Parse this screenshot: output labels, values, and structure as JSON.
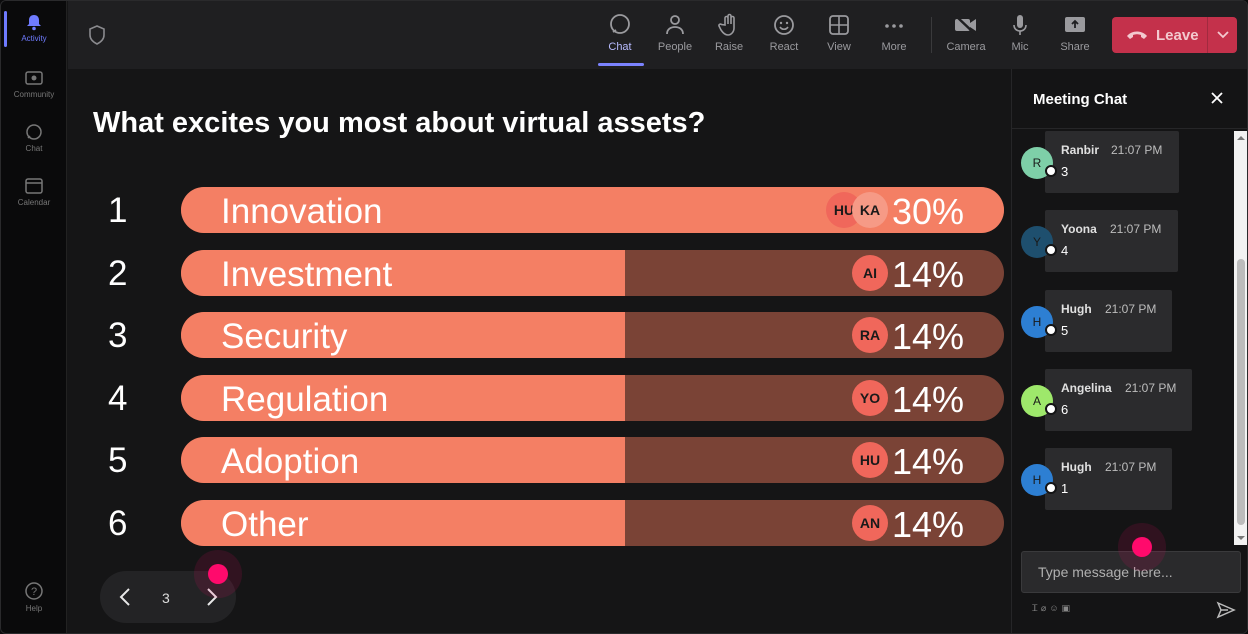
{
  "rail": {
    "items": [
      {
        "label": "Activity",
        "icon": "bell-icon"
      },
      {
        "label": "Community",
        "icon": "community-icon"
      },
      {
        "label": "Chat",
        "icon": "chat-icon"
      },
      {
        "label": "Calendar",
        "icon": "calendar-icon"
      },
      {
        "label": "Help",
        "icon": "help-icon"
      }
    ]
  },
  "toolbar": {
    "buttons": [
      {
        "label": "Chat",
        "icon": "chat-icon"
      },
      {
        "label": "People",
        "icon": "people-icon"
      },
      {
        "label": "Raise",
        "icon": "raise-hand-icon"
      },
      {
        "label": "React",
        "icon": "react-icon"
      },
      {
        "label": "View",
        "icon": "view-grid-icon"
      },
      {
        "label": "More",
        "icon": "more-icon"
      },
      {
        "label": "Camera",
        "icon": "camera-off-icon"
      },
      {
        "label": "Mic",
        "icon": "mic-icon"
      },
      {
        "label": "Share",
        "icon": "share-icon"
      }
    ],
    "leave_label": "Leave",
    "leave_color": "#c4314b"
  },
  "poll": {
    "question": "What excites you most about virtual assets?",
    "options": [
      {
        "num": "1",
        "label": "Innovation",
        "percent_text": "30%",
        "percent": 100,
        "avatars": [
          "HU",
          "KA"
        ]
      },
      {
        "num": "2",
        "label": "Investment",
        "percent_text": "14%",
        "percent": 54,
        "avatars": [
          "AI"
        ]
      },
      {
        "num": "3",
        "label": "Security",
        "percent_text": "14%",
        "percent": 54,
        "avatars": [
          "RA"
        ]
      },
      {
        "num": "4",
        "label": "Regulation",
        "percent_text": "14%",
        "percent": 54,
        "avatars": [
          "YO"
        ]
      },
      {
        "num": "5",
        "label": "Adoption",
        "percent_text": "14%",
        "percent": 54,
        "avatars": [
          "HU"
        ]
      },
      {
        "num": "6",
        "label": "Other",
        "percent_text": "14%",
        "percent": 54,
        "avatars": [
          "AN"
        ]
      }
    ],
    "fill_color": "#f47f64",
    "track_color": "#7a4336",
    "page": "3"
  },
  "chat": {
    "title": "Meeting Chat",
    "messages": [
      {
        "initial": "R",
        "name": "Ranbir",
        "time": "21:07 PM",
        "text": "3",
        "color": "#7ecfa8"
      },
      {
        "initial": "Y",
        "name": "Yoona",
        "time": "21:07 PM",
        "text": "4",
        "color": "#1e4f6e"
      },
      {
        "initial": "H",
        "name": "Hugh",
        "time": "21:07 PM",
        "text": "5",
        "color": "#2d7fd3"
      },
      {
        "initial": "A",
        "name": "Angelina",
        "time": "21:07 PM",
        "text": "6",
        "color": "#9ee86b"
      },
      {
        "initial": "H",
        "name": "Hugh",
        "time": "21:07 PM",
        "text": "1",
        "color": "#2d7fd3"
      }
    ],
    "input_placeholder": "Type message here..."
  }
}
